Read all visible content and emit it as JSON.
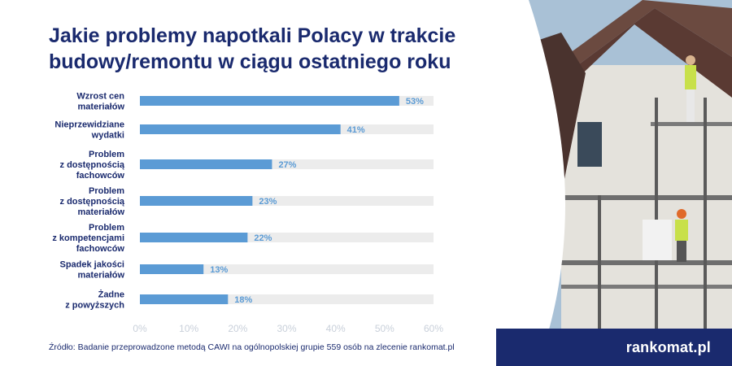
{
  "title_line1": "Jakie problemy napotkali Polacy w trakcie",
  "title_line2": "budowy/remontu w ciągu ostatniego roku",
  "source": "Źródło: Badanie przeprowadzone metodą CAWI na ogólnopolskiej grupie 559 osób na zlecenie rankomat.pl",
  "brand": "rankomat.pl",
  "colors": {
    "title": "#1a2a6e",
    "bar": "#5b9bd5",
    "track": "#ececec",
    "brand_bar": "#1a2a6e"
  },
  "chart_data": {
    "type": "bar",
    "orientation": "horizontal",
    "categories": [
      [
        "Wzrost cen",
        "materiałów"
      ],
      [
        "Nieprzewidziane",
        "wydatki"
      ],
      [
        "Problem",
        "z dostępnością",
        "fachowców"
      ],
      [
        "Problem",
        "z dostępnością",
        "materiałów"
      ],
      [
        "Problem",
        "z kompetencjami",
        "fachowców"
      ],
      [
        "Spadek jakości",
        "materiałów"
      ],
      [
        "Żadne",
        "z powyższych"
      ]
    ],
    "values": [
      53,
      41,
      27,
      23,
      22,
      13,
      18
    ],
    "value_labels": [
      "53%",
      "41%",
      "27%",
      "23%",
      "22%",
      "13%",
      "18%"
    ],
    "xlim": [
      0,
      60
    ],
    "xticks": [
      "0%",
      "10%",
      "20%",
      "30%",
      "40%",
      "50%",
      "60%"
    ],
    "grid": false
  }
}
